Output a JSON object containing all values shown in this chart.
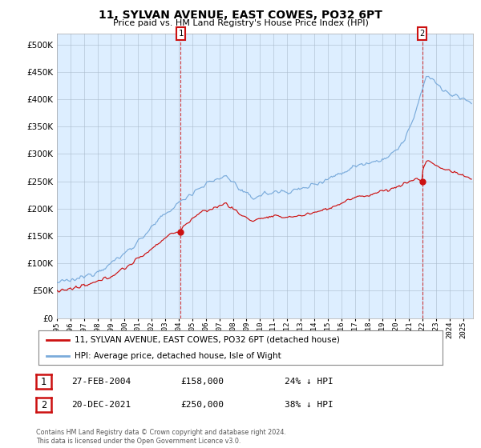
{
  "title": "11, SYLVAN AVENUE, EAST COWES, PO32 6PT",
  "subtitle": "Price paid vs. HM Land Registry's House Price Index (HPI)",
  "legend_line1": "11, SYLVAN AVENUE, EAST COWES, PO32 6PT (detached house)",
  "legend_line2": "HPI: Average price, detached house, Isle of Wight",
  "annotation1_date": "27-FEB-2004",
  "annotation1_price": "£158,000",
  "annotation1_hpi": "24% ↓ HPI",
  "annotation2_date": "20-DEC-2021",
  "annotation2_price": "£250,000",
  "annotation2_hpi": "38% ↓ HPI",
  "footer": "Contains HM Land Registry data © Crown copyright and database right 2024.\nThis data is licensed under the Open Government Licence v3.0.",
  "hpi_color": "#7aabdb",
  "price_color": "#cc1111",
  "annotation_color": "#cc1111",
  "background_color": "#ffffff",
  "chart_bg_color": "#ddeeff",
  "grid_color": "#aabbcc",
  "ylim": [
    0,
    520000
  ],
  "yticks": [
    0,
    50000,
    100000,
    150000,
    200000,
    250000,
    300000,
    350000,
    400000,
    450000,
    500000
  ],
  "sale1_x": 2004.15,
  "sale1_y": 158000,
  "sale2_x": 2021.96,
  "sale2_y": 250000,
  "xmin": 1995,
  "xmax": 2025.7
}
